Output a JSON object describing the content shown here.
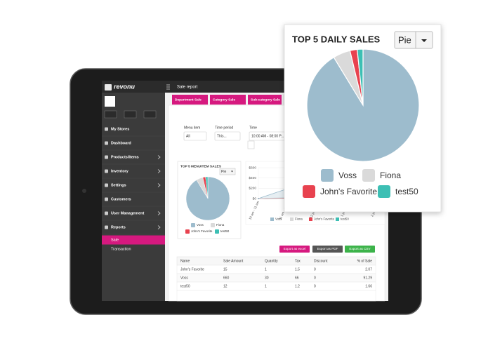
{
  "sidebar": {
    "brand": "revonu",
    "items": [
      "My Stores",
      "Dashboard",
      "Products/Items",
      "Inventory",
      "Settings",
      "Customers",
      "User Management",
      "Reports"
    ],
    "subitems": [
      "Sale",
      "Transaction"
    ]
  },
  "header": {
    "title": "Sale report"
  },
  "tabs": [
    "Department Sale",
    "Category Sale",
    "Sub-category Sale"
  ],
  "filters": [
    {
      "label": "Menu item",
      "value": "All"
    },
    {
      "label": "Time period",
      "value": "This..."
    },
    {
      "label": "Time",
      "value": "10:00 AM - 08:00 P..."
    }
  ],
  "exports": [
    "Export as excel",
    "Export as PDF",
    "Export as CSV"
  ],
  "table": {
    "columns": [
      "Name",
      "Sale Amount",
      "Quantity",
      "Tax",
      "Discount",
      "% of Sale"
    ],
    "rows": [
      [
        "John's Favorite",
        15,
        1,
        1.5,
        0,
        2.07
      ],
      [
        "Voss",
        660,
        30,
        66,
        0,
        91.29
      ],
      [
        "test50",
        12,
        1,
        1.2,
        0,
        1.66
      ]
    ]
  },
  "chart_data": [
    {
      "type": "pie",
      "title": "TOP 5 DAILY SALES",
      "control": "Pie",
      "categories": [
        "Voss",
        "Fiona",
        "John's Favorite",
        "test50"
      ],
      "values": [
        91.29,
        4.98,
        2.07,
        1.66
      ],
      "colors": [
        "#9dbccd",
        "#dadada",
        "#e8424f",
        "#3dbfb4"
      ]
    },
    {
      "type": "pie",
      "title": "TOP 5 MENUITEM SALES",
      "control": "Pie",
      "categories": [
        "Voss",
        "Fiona",
        "John's Favorite",
        "test50"
      ],
      "values": [
        91.29,
        4.98,
        2.07,
        1.66
      ],
      "colors": [
        "#9dbccd",
        "#dadada",
        "#e8424f",
        "#3dbfb4"
      ]
    },
    {
      "type": "line",
      "categories": [
        "10 am - 11 am",
        "11 am - 12 pm",
        "12 pm - 1 pm",
        "1 pm - 2 pm",
        "2 pm - 3 pm"
      ],
      "series": [
        {
          "name": "Voss",
          "color": "#9dbccd",
          "values": [
            0,
            200,
            450,
            150,
            0
          ]
        },
        {
          "name": "Fiona",
          "color": "#dadada",
          "values": [
            0,
            20,
            40,
            10,
            0
          ]
        },
        {
          "name": "John's Favorite",
          "color": "#e8424f",
          "values": [
            0,
            8,
            15,
            5,
            0
          ]
        },
        {
          "name": "test50",
          "color": "#3dbfb4",
          "values": [
            0,
            6,
            12,
            4,
            0
          ]
        }
      ],
      "ylim": [
        0,
        600
      ],
      "yticks": [
        {
          "value": 0,
          "label": "$0"
        },
        {
          "value": 200,
          "label": "$200"
        },
        {
          "value": 400,
          "label": "$400"
        },
        {
          "value": 600,
          "label": "$600"
        }
      ]
    }
  ]
}
